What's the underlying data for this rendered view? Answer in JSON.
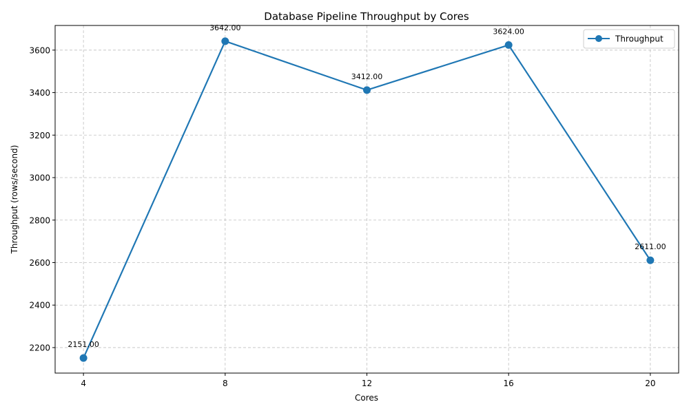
{
  "chart_data": {
    "type": "line",
    "title": "Database Pipeline Throughput by Cores",
    "xlabel": "Cores",
    "ylabel": "Throughput (rows/second)",
    "x": [
      4,
      8,
      12,
      16,
      20
    ],
    "x_tick_labels": [
      "4",
      "8",
      "12",
      "16",
      "20"
    ],
    "xlim": [
      3.2,
      20.8
    ],
    "ylim": [
      2080,
      3716
    ],
    "y_ticks": [
      2200,
      2400,
      2600,
      2800,
      3000,
      3200,
      3400,
      3600
    ],
    "y_tick_labels": [
      "2200",
      "2400",
      "2600",
      "2800",
      "3000",
      "3200",
      "3400",
      "3600"
    ],
    "grid": true,
    "legend_position": "top-right",
    "series": [
      {
        "name": "Throughput",
        "color": "#1f77b4",
        "marker": "circle",
        "values": [
          2151.0,
          3642.0,
          3412.0,
          3624.0,
          2611.0
        ],
        "data_labels": [
          "2151.00",
          "3642.00",
          "3412.00",
          "3624.00",
          "2611.00"
        ]
      }
    ]
  }
}
